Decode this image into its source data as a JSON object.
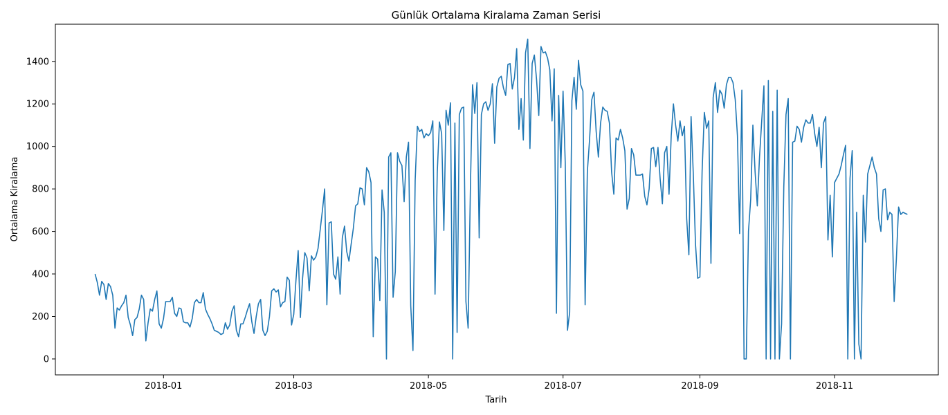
{
  "chart_data": {
    "type": "line",
    "title": "Günlük Ortalama Kiralama Zaman Serisi",
    "xlabel": "Tarih",
    "ylabel": "Ortalama Kiralama",
    "x_tick_labels": [
      "2018-01",
      "2018-03",
      "2018-05",
      "2018-07",
      "2018-09",
      "2018-11"
    ],
    "y_tick_labels": [
      "0",
      "200",
      "400",
      "600",
      "800",
      "1000",
      "1200",
      "1400"
    ],
    "ylim": [
      -75,
      1575
    ],
    "xlim": [
      "2017-11-13",
      "2018-12-18"
    ],
    "grid": false,
    "line_color": "#1f77b4",
    "series": [
      {
        "start_date": "2017-12-01",
        "values": [
          400,
          360,
          300,
          365,
          350,
          280,
          355,
          340,
          300,
          145,
          240,
          230,
          250,
          265,
          300,
          195,
          160,
          110,
          185,
          195,
          235,
          300,
          280,
          85,
          170,
          235,
          225,
          280,
          320,
          165,
          145,
          190,
          270,
          270,
          270,
          290,
          215,
          200,
          240,
          235,
          175,
          170,
          170,
          150,
          190,
          265,
          280,
          265,
          265,
          312,
          235,
          210,
          190,
          165,
          135,
          130,
          125,
          115,
          120,
          170,
          140,
          160,
          225,
          250,
          135,
          105,
          165,
          165,
          195,
          230,
          260,
          175,
          120,
          200,
          260,
          280,
          135,
          110,
          130,
          200,
          320,
          330,
          315,
          325,
          245,
          265,
          270,
          385,
          370,
          160,
          210,
          370,
          510,
          195,
          380,
          500,
          475,
          320,
          485,
          465,
          480,
          520,
          610,
          700,
          800,
          255,
          640,
          645,
          400,
          375,
          480,
          305,
          570,
          625,
          505,
          460,
          540,
          615,
          720,
          730,
          805,
          800,
          725,
          900,
          880,
          830,
          105,
          480,
          470,
          275,
          795,
          690,
          0,
          950,
          970,
          290,
          410,
          970,
          930,
          910,
          740,
          950,
          1020,
          250,
          40,
          840,
          1095,
          1070,
          1080,
          1040,
          1060,
          1050,
          1065,
          1120,
          305,
          875,
          1115,
          1060,
          605,
          1170,
          1100,
          1205,
          0,
          1110,
          125,
          1150,
          1180,
          1185,
          270,
          145,
          790,
          1290,
          1155,
          1300,
          570,
          1150,
          1200,
          1210,
          1170,
          1200,
          1295,
          1015,
          1280,
          1320,
          1330,
          1275,
          1240,
          1385,
          1390,
          1270,
          1325,
          1460,
          1080,
          1225,
          1030,
          1440,
          1505,
          990,
          1390,
          1430,
          1315,
          1145,
          1470,
          1440,
          1445,
          1415,
          1360,
          1120,
          1365,
          215,
          1240,
          900,
          1260,
          920,
          135,
          220,
          1215,
          1325,
          1175,
          1405,
          1290,
          1260,
          255,
          880,
          1030,
          1220,
          1255,
          1070,
          950,
          1110,
          1185,
          1170,
          1165,
          1110,
          880,
          775,
          1040,
          1030,
          1080,
          1040,
          980,
          705,
          755,
          990,
          960,
          865,
          865,
          865,
          870,
          765,
          725,
          800,
          990,
          995,
          905,
          995,
          845,
          730,
          970,
          1000,
          775,
          1050,
          1200,
          1100,
          1025,
          1120,
          1050,
          1095,
          660,
          490,
          1140,
          870,
          540,
          380,
          385,
          885,
          1160,
          1085,
          1120,
          450,
          1230,
          1300,
          1160,
          1265,
          1245,
          1180,
          1290,
          1325,
          1325,
          1300,
          1220,
          1050,
          590,
          1265,
          0,
          0,
          600,
          750,
          1100,
          880,
          720,
          950,
          1120,
          1285,
          0,
          1310,
          0,
          1165,
          0,
          1265,
          0,
          165,
          810,
          1150,
          1225,
          0,
          1020,
          1025,
          1095,
          1080,
          1020,
          1090,
          1125,
          1110,
          1110,
          1150,
          1060,
          1000,
          1090,
          900,
          1110,
          1140,
          560,
          770,
          480,
          830,
          850,
          870,
          910,
          960,
          1005,
          0,
          850,
          980,
          0,
          690,
          70,
          0,
          770,
          550,
          870,
          910,
          950,
          900,
          870,
          660,
          600,
          795,
          800,
          655,
          690,
          680,
          270,
          470,
          715,
          680,
          690,
          685,
          680
        ]
      }
    ]
  }
}
